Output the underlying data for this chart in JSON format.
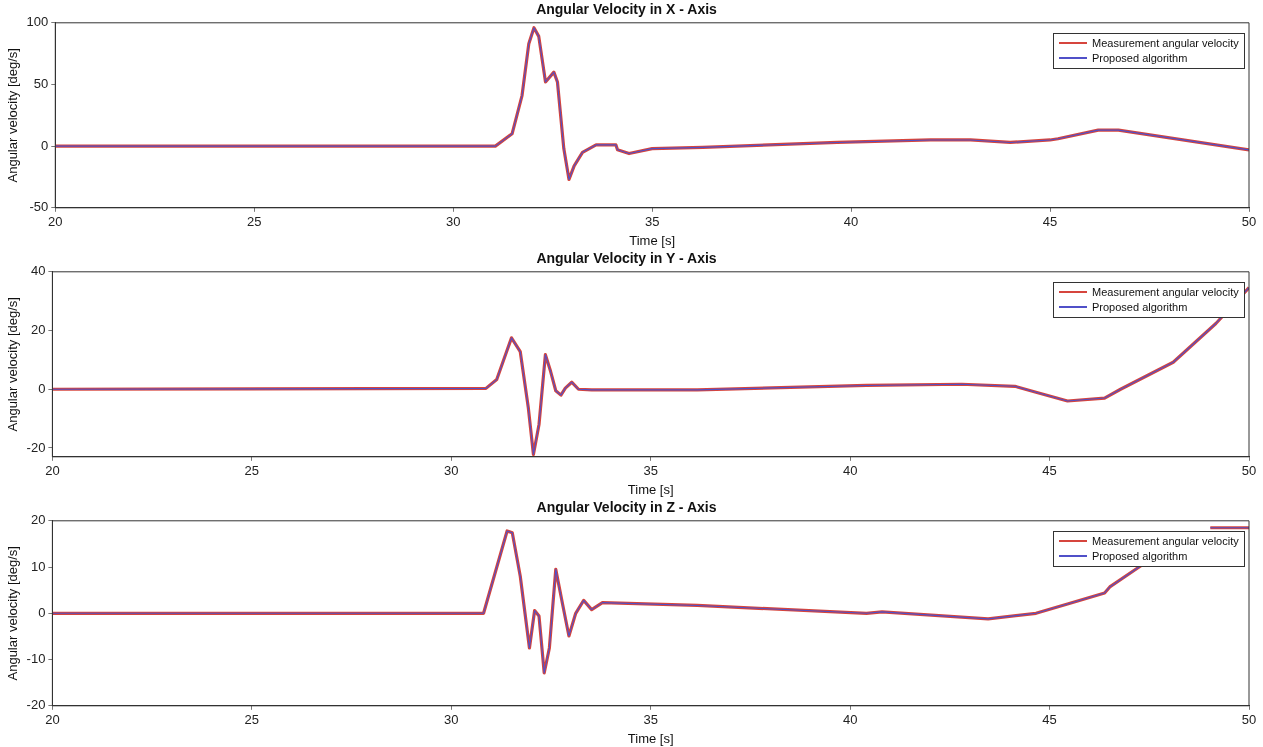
{
  "chart_data": [
    {
      "type": "line",
      "title": "Angular Velocity in X - Axis",
      "xlabel": "Time [s]",
      "ylabel": "Angular velocity [deg/s]",
      "legend": "top right",
      "grid": false,
      "marker": "none",
      "line_style": "solid",
      "xlim": [
        20,
        50
      ],
      "xticks": [
        20,
        25,
        30,
        35,
        40,
        45,
        50
      ],
      "ylim": [
        -50,
        100
      ],
      "yticks": [
        -50,
        0,
        50,
        100
      ],
      "x": [
        20,
        31.06,
        31.48,
        31.73,
        31.9,
        32.03,
        32.15,
        32.32,
        32.53,
        32.62,
        32.78,
        32.91,
        33.04,
        33.25,
        33.59,
        34.09,
        34.13,
        34.42,
        35,
        36.27,
        39.65,
        42,
        43,
        44,
        45,
        45.2,
        46.21,
        46.72,
        50
      ],
      "series": [
        {
          "name": "Measurement angular velocity",
          "color": "#d6453d",
          "values": [
            0,
            0,
            10,
            41,
            83,
            96,
            89,
            52,
            60,
            52,
            -2,
            -27,
            -16,
            -5,
            1,
            1,
            -3,
            -6,
            -2,
            -1,
            3,
            5,
            5,
            3,
            5,
            6,
            13,
            13,
            -3
          ]
        },
        {
          "name": "Proposed algorithm",
          "color": "#5050c8",
          "values": [
            0,
            0,
            10,
            41,
            83,
            96,
            89,
            52,
            60,
            52,
            -2,
            -27,
            -16,
            -5,
            1,
            1,
            -3,
            -6,
            -2,
            -1,
            3,
            5,
            5,
            3,
            5,
            6,
            13,
            13,
            -3
          ]
        }
      ]
    },
    {
      "type": "line",
      "title": "Angular Velocity in Y - Axis",
      "xlabel": "Time [s]",
      "ylabel": "Angular velocity [deg/s]",
      "legend": "top right",
      "grid": false,
      "marker": "none",
      "line_style": "solid",
      "xlim": [
        20,
        50
      ],
      "xticks": [
        20,
        25,
        30,
        35,
        40,
        45,
        50
      ],
      "ylim": [
        -23,
        40
      ],
      "yticks": [
        -20,
        0,
        20,
        40
      ],
      "x": [
        20,
        30.87,
        31.14,
        31.51,
        31.73,
        31.93,
        32.06,
        32.2,
        32.36,
        32.49,
        32.62,
        32.75,
        32.86,
        33.02,
        33.19,
        33.52,
        36.17,
        40.41,
        42.8,
        44.13,
        44.66,
        45.45,
        46.38,
        46.78,
        48.1,
        49.17,
        50
      ],
      "series": [
        {
          "name": "Measurement angular velocity",
          "color": "#d6453d",
          "values": [
            0,
            0.3,
            3.3,
            17.5,
            12.8,
            -6.1,
            -22.2,
            -12,
            11.8,
            6.1,
            -0.5,
            -2,
            0.4,
            2.4,
            0,
            -0.2,
            -0.2,
            1.3,
            1.7,
            1,
            -1,
            -4,
            -3,
            0,
            9.2,
            22.4,
            34.6
          ]
        },
        {
          "name": "Proposed algorithm",
          "color": "#5050c8",
          "values": [
            0,
            0.3,
            3.3,
            17.5,
            12.8,
            -6.1,
            -22.2,
            -12,
            11.8,
            6.1,
            -0.5,
            -2,
            0.4,
            2.4,
            0,
            -0.2,
            -0.2,
            1.3,
            1.7,
            1,
            -1,
            -4,
            -3,
            0,
            9.2,
            22.4,
            34.6
          ]
        }
      ]
    },
    {
      "type": "line",
      "title": "Angular Velocity in Z - Axis",
      "xlabel": "Time [s]",
      "ylabel": "Angular velocity [deg/s]",
      "legend": "top right",
      "grid": false,
      "marker": "none",
      "line_style": "solid",
      "xlim": [
        20,
        50
      ],
      "xticks": [
        20,
        25,
        30,
        35,
        40,
        45,
        50
      ],
      "ylim": [
        -20,
        20
      ],
      "yticks": [
        -20,
        -10,
        0,
        10,
        20
      ],
      "x": [
        20,
        30.81,
        31.4,
        31.53,
        31.73,
        31.96,
        32.09,
        32.2,
        32.33,
        32.46,
        32.62,
        32.79,
        32.95,
        33.12,
        33.32,
        33.52,
        33.79,
        36.17,
        40.41,
        40.8,
        43.46,
        44.66,
        45.45,
        46.38,
        46.51,
        47.31,
        48.37,
        49.03,
        50
      ],
      "series": [
        {
          "name": "Measurement angular velocity",
          "color": "#d6453d",
          "values": [
            0,
            0,
            17.8,
            17.4,
            8,
            -7.5,
            0.6,
            -0.6,
            -12.9,
            -7.5,
            9.5,
            2,
            -4.9,
            0,
            2.8,
            0.8,
            2.3,
            1.7,
            0,
            0.3,
            -1.2,
            0,
            2,
            4.4,
            5.7,
            10.4,
            null,
            18.5,
            18.5
          ]
        },
        {
          "name": "Proposed algorithm",
          "color": "#5050c8",
          "values": [
            0,
            0,
            17.8,
            17.4,
            8,
            -7.5,
            0.6,
            -0.6,
            -12.9,
            -7.5,
            9.5,
            2,
            -4.9,
            0,
            2.8,
            0.8,
            2.3,
            1.7,
            0,
            0.3,
            -1.2,
            0,
            2,
            4.4,
            5.7,
            10.4,
            null,
            18.5,
            18.5
          ]
        }
      ]
    }
  ]
}
